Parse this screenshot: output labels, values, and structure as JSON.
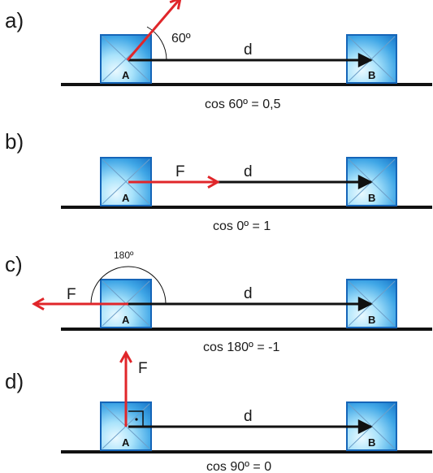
{
  "colors": {
    "force": "#e0262a",
    "displacement": "#111111",
    "ground": "#111111",
    "block_outer": "#1976c8",
    "block_inner": "#bfe8fb"
  },
  "panels": [
    {
      "label": "a)",
      "force_label": "",
      "d_label": "d",
      "angle_label": "60º",
      "equation": "cos 60º = 0,5",
      "block_a": "A",
      "block_b": "B",
      "force_angle_deg": 60
    },
    {
      "label": "b)",
      "force_label": "F",
      "d_label": "d",
      "angle_label": "",
      "equation": "cos 0º = 1",
      "block_a": "A",
      "block_b": "B",
      "force_angle_deg": 0
    },
    {
      "label": "c)",
      "force_label": "F",
      "d_label": "d",
      "angle_label": "180º",
      "equation": "cos 180º = -1",
      "block_a": "A",
      "block_b": "B",
      "force_angle_deg": 180
    },
    {
      "label": "d)",
      "force_label": "F",
      "d_label": "d",
      "angle_label": "",
      "equation": "cos 90º = 0",
      "block_a": "A",
      "block_b": "B",
      "force_angle_deg": 90
    }
  ]
}
